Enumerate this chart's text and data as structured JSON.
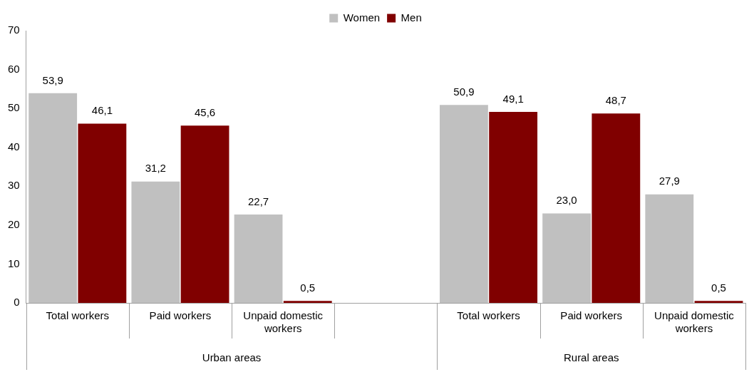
{
  "chart_data": {
    "type": "bar",
    "categories": [
      "Total workers",
      "Paid workers",
      "Unpaid domestic workers",
      null,
      "Total workers",
      "Paid workers",
      "Unpaid domestic workers"
    ],
    "series": [
      {
        "name": "Women",
        "color": "#c0c0c0",
        "values": [
          53.9,
          31.2,
          22.7,
          null,
          50.9,
          23.0,
          27.9
        ],
        "value_labels": [
          "53,9",
          "31,2",
          "22,7",
          null,
          "50,9",
          "23,0",
          "27,9"
        ]
      },
      {
        "name": "Men",
        "color": "#800000",
        "values": [
          46.1,
          45.6,
          0.5,
          null,
          49.1,
          48.7,
          0.5
        ],
        "value_labels": [
          "46,1",
          "45,6",
          "0,5",
          null,
          "49,1",
          "48,7",
          "0,5"
        ]
      }
    ],
    "ylim": [
      0,
      70
    ],
    "yticks": [
      0,
      10,
      20,
      30,
      40,
      50,
      60,
      70
    ],
    "grid": false,
    "legend": "top",
    "annotations": [
      "Urban areas",
      "Rural areas"
    ]
  }
}
